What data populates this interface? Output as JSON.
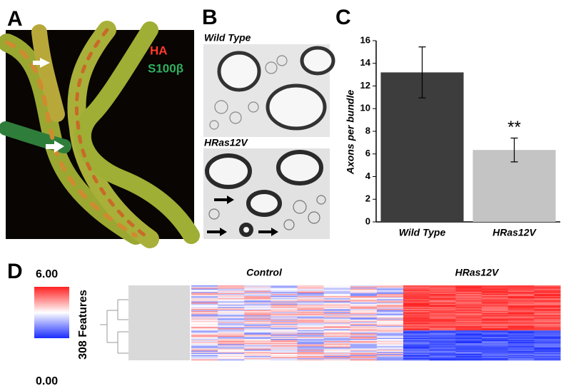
{
  "panel_labels": [
    "A",
    "B",
    "C",
    "D"
  ],
  "panel_a": {
    "legend": [
      "HA",
      "S100β"
    ]
  },
  "panel_b": {
    "labels": [
      "Wild Type",
      "HRas12V"
    ]
  },
  "chart_data": {
    "type": "bar",
    "y_label": "Axons per bundle",
    "categories": [
      "Wild Type",
      "HRas12V"
    ],
    "values": [
      13.2,
      6.35
    ],
    "errors": [
      2.25,
      1.05
    ],
    "colors": [
      "#3d3d3d",
      "#c4c4c4"
    ],
    "ylim": [
      0,
      16
    ],
    "yticks": [
      0,
      2,
      4,
      6,
      8,
      10,
      12,
      14,
      16
    ],
    "annotations": [
      {
        "text": "**",
        "x": "HRas12V"
      }
    ]
  },
  "panel_d": {
    "scale_max": "6.00",
    "scale_min": "0.00",
    "row_label": "308 Features",
    "columns": [
      "Control",
      "HRas12V"
    ]
  }
}
